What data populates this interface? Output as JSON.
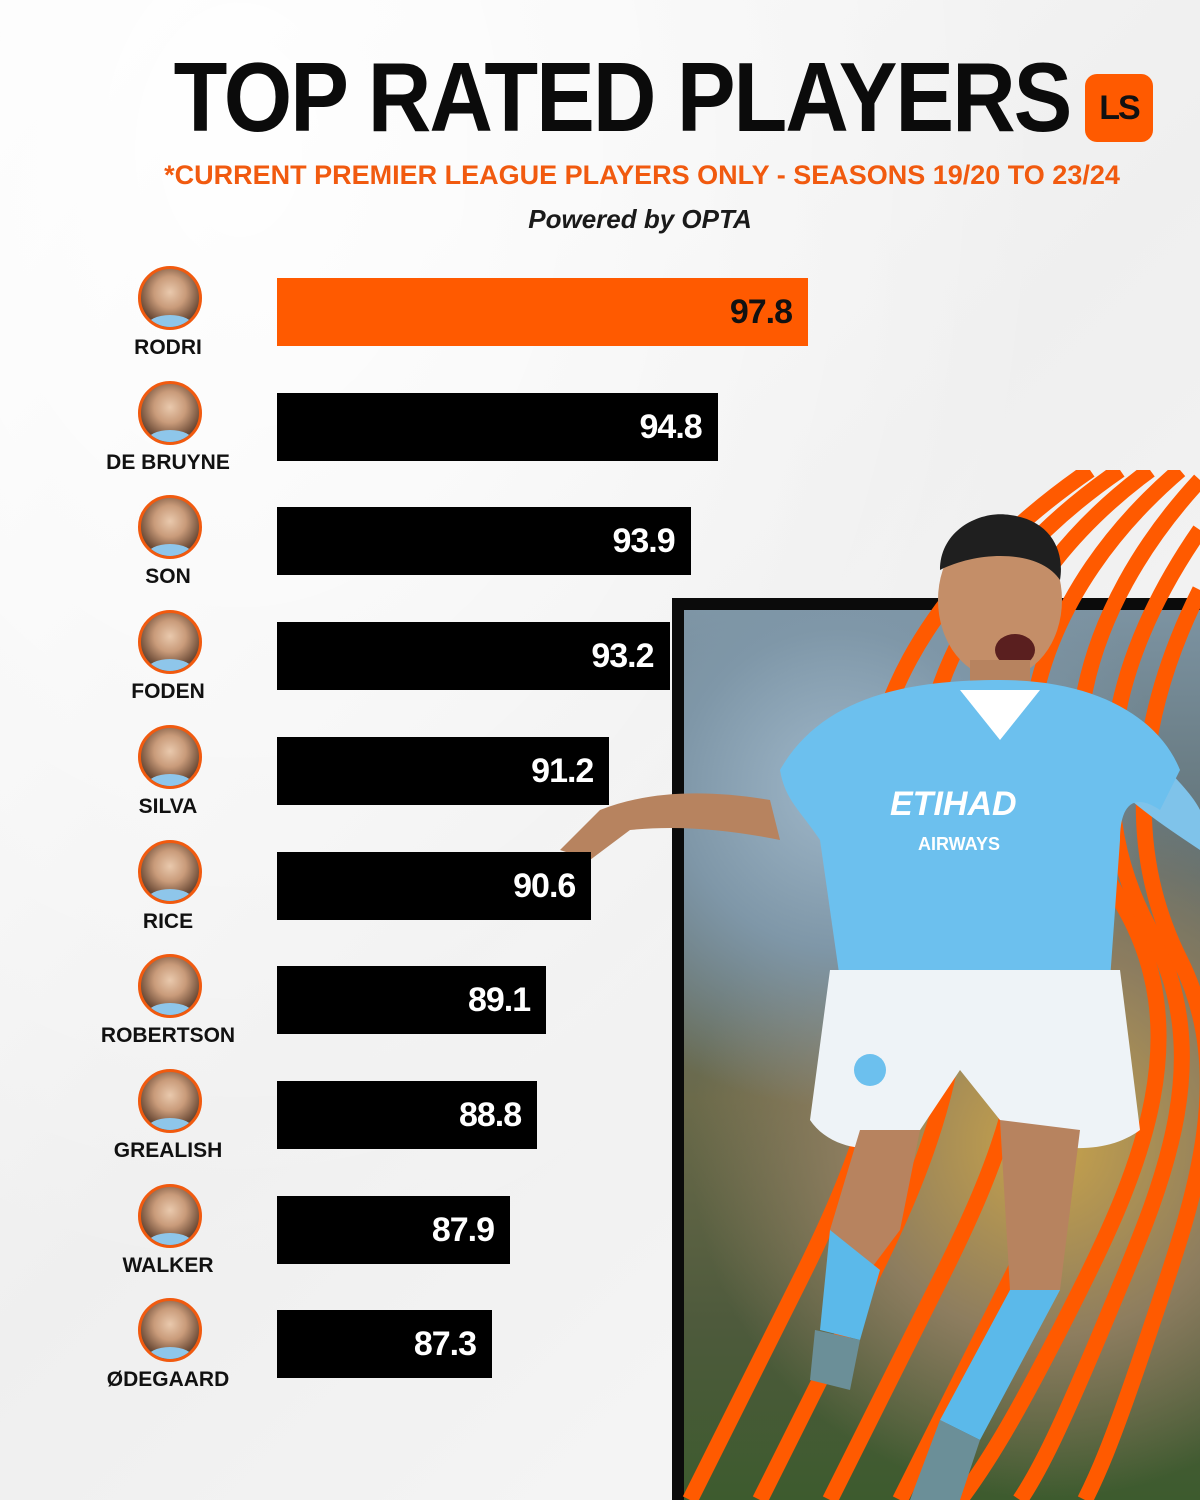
{
  "header": {
    "title": "TOP RATED PLAYERS",
    "subtitle": "*CURRENT PREMIER LEAGUE PLAYERS ONLY - SEASONS 19/20 TO 23/24",
    "powered_by": "Powered by OPTA",
    "logo_text": "LS"
  },
  "colors": {
    "accent": "#ff5a00",
    "bar": "#000000",
    "text_accent": "#f15a0f"
  },
  "chart_data": {
    "type": "bar",
    "orientation": "horizontal",
    "title": "TOP RATED PLAYERS",
    "subtitle": "*CURRENT PREMIER LEAGUE PLAYERS ONLY - SEASONS 19/20 TO 23/24",
    "categories": [
      "RODRI",
      "DE BRUYNE",
      "SON",
      "FODEN",
      "SILVA",
      "RICE",
      "ROBERTSON",
      "GREALISH",
      "WALKER",
      "ØDEGAARD"
    ],
    "values": [
      97.8,
      94.8,
      93.9,
      93.2,
      91.2,
      90.6,
      89.1,
      88.8,
      87.9,
      87.3
    ],
    "value_labels": [
      "97.8",
      "94.8",
      "93.9",
      "93.2",
      "91.2",
      "90.6",
      "89.1",
      "88.8",
      "87.9",
      "87.3"
    ],
    "highlight_index": 0,
    "xlabel": "",
    "ylabel": "",
    "grid": false
  }
}
